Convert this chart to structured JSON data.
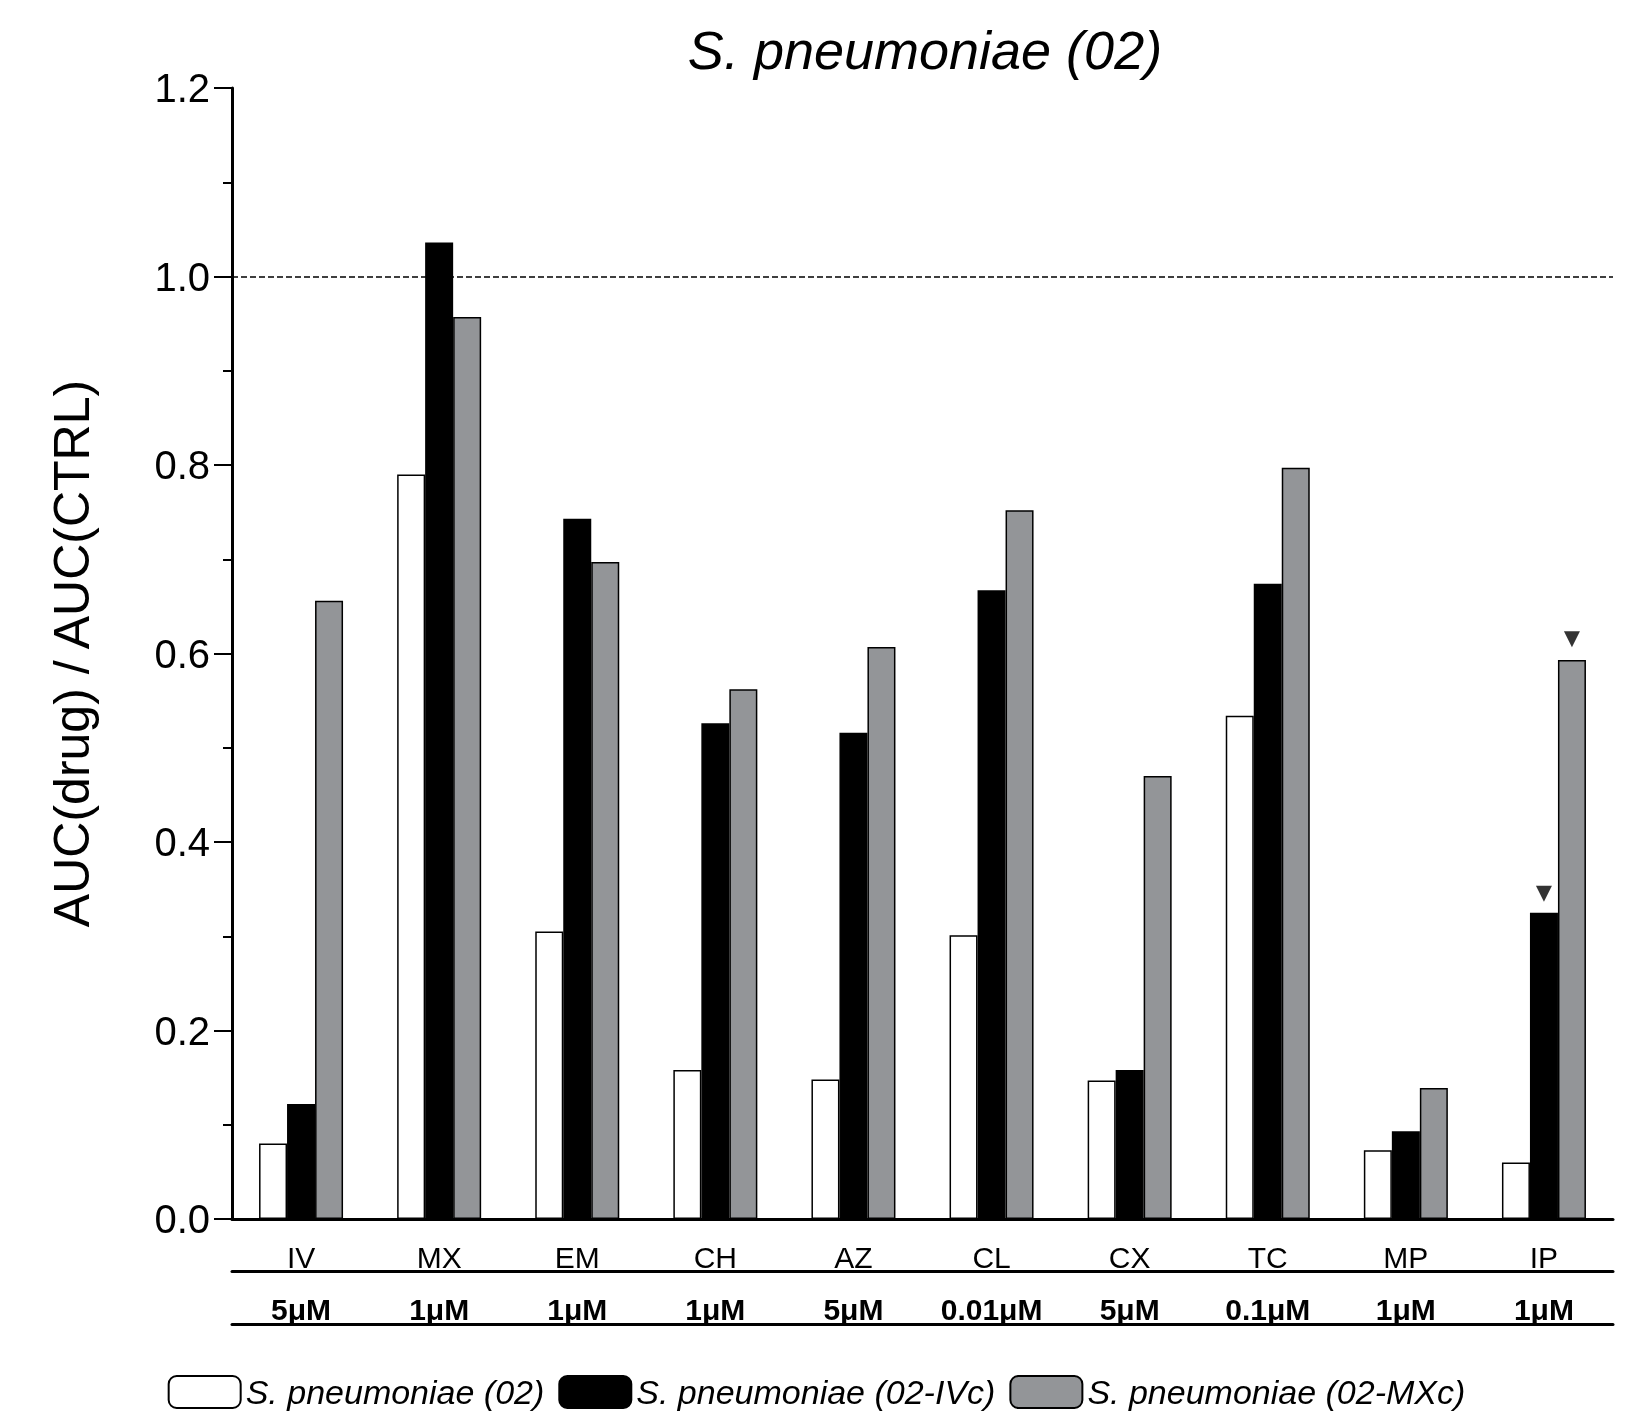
{
  "chart_data": {
    "type": "bar",
    "title": "S. pneumoniae (02)",
    "ylabel": "AUC(drug) / AUC(CTRL)",
    "categories": [
      "IV\n5μM",
      "MX\n1μM",
      "EM\n1μM",
      "CH\n1μM",
      "AZ\n5μM",
      "CL\n0.01μM",
      "CX\n5μM",
      "TC\n0.1μM",
      "MP\n1μM",
      "IP\n1μM"
    ],
    "series": [
      {
        "name": "S. pneumoniae (02)",
        "color": "#ffffff",
        "values": [
          0.08,
          0.79,
          0.305,
          0.158,
          0.148,
          0.301,
          0.147,
          0.534,
          0.073,
          0.06
        ]
      },
      {
        "name": "S. pneumoniae (02-IVc)",
        "color": "#000000",
        "values": [
          0.122,
          1.036,
          0.743,
          0.526,
          0.516,
          0.667,
          0.158,
          0.674,
          0.093,
          0.325
        ]
      },
      {
        "name": "S. pneumoniae (02-MXc)",
        "color": "#939598",
        "values": [
          0.656,
          0.957,
          0.697,
          0.562,
          0.607,
          0.752,
          0.47,
          0.797,
          0.139,
          0.593
        ]
      },
      {
        "type": "scatter",
        "marker": "triangle",
        "color": "#000000",
        "x": [
          "IP\n1μM",
          "IP\n1μM"
        ],
        "values": [
          0.345,
          0.615
        ]
      }
    ],
    "ylim": [
      0,
      1.2
    ],
    "yticks": [
      {
        "value": 0,
        "label": "0.0"
      },
      {
        "value": 0.2,
        "label": "0.2"
      },
      {
        "value": 0.4,
        "label": "0.4"
      },
      {
        "value": 0.6,
        "label": "0.6"
      },
      {
        "value": 0.8,
        "label": "0.8"
      },
      {
        "value": 1,
        "label": "1.0"
      },
      {
        "value": 1.2,
        "label": "1.2"
      }
    ],
    "ref_lines": [
      {
        "axis": "y",
        "value": 1,
        "label": null,
        "color": "#000000",
        "line_style": "dashed"
      }
    ],
    "legend": "bottom",
    "grid": false
  }
}
